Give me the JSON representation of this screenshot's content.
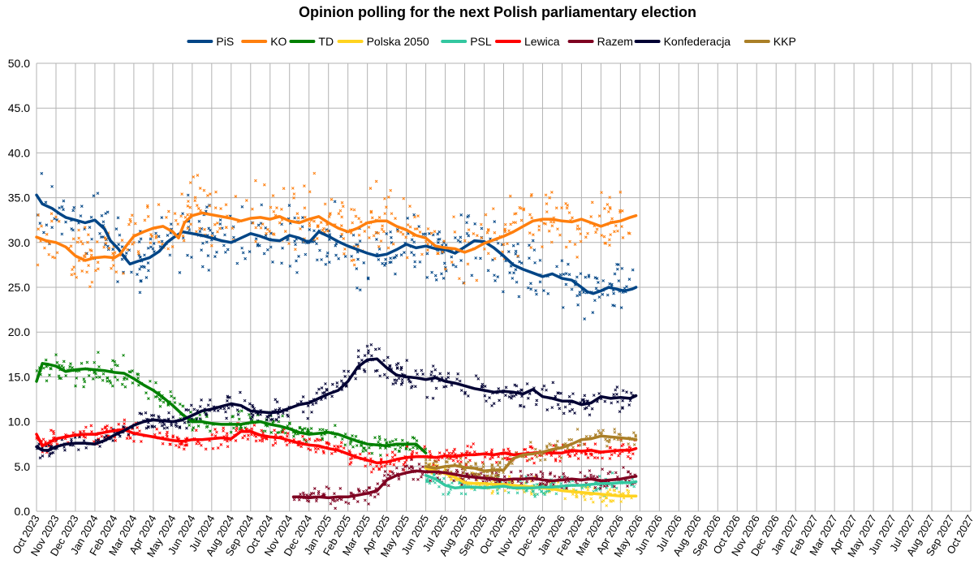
{
  "chart_data": {
    "type": "line",
    "title": "Opinion polling for the next Polish parliamentary election",
    "xlabel": "",
    "ylabel": "",
    "ylim": [
      0,
      50
    ],
    "y_ticks": [
      "0.0",
      "5.0",
      "10.0",
      "15.0",
      "20.0",
      "25.0",
      "30.0",
      "35.0",
      "40.0",
      "45.0",
      "50.0"
    ],
    "x_ticks": [
      "Oct 2023",
      "Nov 2023",
      "Dec 2023",
      "Jan 2024",
      "Feb 2024",
      "Mar 2024",
      "Apr 2024",
      "May 2024",
      "Jun 2024",
      "Jul 2024",
      "Aug 2024",
      "Sep 2024",
      "Oct 2024",
      "Nov 2024",
      "Dec 2024",
      "Jan 2025",
      "Feb 2025",
      "Mar 2025",
      "Apr 2025",
      "May 2025",
      "Jun 2025",
      "Jul 2025",
      "Aug 2025",
      "Sep 2025",
      "Oct 2025",
      "Nov 2025",
      "Dec 2025",
      "Jan 2026",
      "Feb 2026",
      "Mar 2026",
      "Apr 2026",
      "May 2026",
      "Jun 2026",
      "Jul 2026",
      "Aug 2026",
      "Sep 2026",
      "Oct 2026",
      "Nov 2026",
      "Dec 2026",
      "Jan 2027",
      "Feb 2027",
      "Mar 2027",
      "Apr 2027",
      "May 2027",
      "Jun 2027",
      "Jul 2027",
      "Aug 2027",
      "Sep 2027",
      "Oct 2027"
    ],
    "grid": true,
    "legend_position": "top",
    "series": [
      {
        "name": "PiS",
        "color": "#004586",
        "x": [
          0,
          0.3,
          0.8,
          1.2,
          1.5,
          2,
          2.5,
          3,
          3.5,
          3.8,
          4.2,
          4.5,
          4.8,
          5.2,
          5.8,
          6.3,
          6.7,
          7,
          7.5,
          8,
          8.5,
          9,
          9.5,
          10,
          10.5,
          11,
          11.5,
          12,
          12.5,
          13,
          13.5,
          14,
          14.5,
          15,
          15.5,
          16,
          16.5,
          17,
          17.5,
          18,
          18.5,
          19,
          19.5,
          20,
          20.5,
          21,
          21.5,
          22,
          22.5,
          23,
          23.5,
          24,
          24.5,
          25,
          25.5,
          26,
          26.5,
          27,
          27.5,
          28,
          28.3,
          28.6,
          29,
          29.4,
          29.8,
          30.2,
          30.6,
          30.8
        ],
        "y": [
          35.3,
          34.3,
          33.8,
          33.2,
          32.8,
          32.5,
          32.2,
          32.5,
          31.5,
          30.2,
          29.3,
          28.4,
          27.6,
          27.9,
          28.3,
          29,
          30,
          30.5,
          31.2,
          31,
          30.8,
          30.5,
          30.2,
          30,
          30.5,
          31,
          30.7,
          30.3,
          30.2,
          30.8,
          30.5,
          30,
          31.2,
          30.7,
          30.1,
          29.6,
          29.2,
          28.8,
          28.5,
          28.7,
          29.2,
          29.8,
          29.4,
          29.6,
          29.3,
          29.2,
          28.8,
          29.5,
          30.2,
          30.1,
          29.4,
          28.5,
          27.5,
          27,
          26.6,
          26.2,
          26.5,
          26,
          25.8,
          25,
          24.5,
          24.3,
          24.6,
          25,
          24.8,
          24.6,
          24.8,
          25
        ]
      },
      {
        "name": "KO",
        "color": "#ff7f0e",
        "x": [
          0,
          0.5,
          1,
          1.5,
          2,
          2.5,
          3,
          3.5,
          4,
          4.3,
          4.6,
          5,
          5.5,
          6,
          6.5,
          7,
          7.3,
          7.6,
          8,
          8.5,
          9,
          9.5,
          10,
          10.5,
          11,
          11.5,
          12,
          12.5,
          13,
          13.5,
          14,
          14.5,
          15,
          15.5,
          16,
          16.5,
          17,
          17.5,
          18,
          18.5,
          19,
          19.5,
          20,
          20.5,
          21,
          21.5,
          22,
          22.5,
          23,
          23.5,
          24,
          24.5,
          25,
          25.5,
          26,
          26.5,
          27,
          27.5,
          28,
          28.5,
          29,
          29.5,
          30,
          30.5,
          30.8
        ],
        "y": [
          30.6,
          30.2,
          30,
          29.5,
          28.5,
          28,
          28.3,
          28.4,
          28.3,
          28.7,
          29.6,
          30.7,
          31.2,
          31.6,
          31.8,
          31.2,
          30.5,
          32.2,
          33,
          33.3,
          33.1,
          32.9,
          32.7,
          32.4,
          32.7,
          32.8,
          32.6,
          32.9,
          32.4,
          32.2,
          32.6,
          32.9,
          32.2,
          31.6,
          31.2,
          31.6,
          32.2,
          32.4,
          32.4,
          31.8,
          31.4,
          30.8,
          30.5,
          29.6,
          29.4,
          29.3,
          28.9,
          29.3,
          29.9,
          30.3,
          30.7,
          31.2,
          31.8,
          32.4,
          32.6,
          32.6,
          32.4,
          32.3,
          32.6,
          32.2,
          31.8,
          32.2,
          32.4,
          32.8,
          33
        ]
      },
      {
        "name": "TD",
        "color": "#008000",
        "x": [
          0,
          0.3,
          0.6,
          1,
          1.5,
          2,
          2.5,
          3,
          3.5,
          4,
          4.5,
          5,
          5.5,
          6,
          6.5,
          7,
          7.5,
          8,
          8.5,
          9,
          9.5,
          10,
          10.5,
          11,
          11.5,
          12,
          12.5,
          13,
          13.5,
          14,
          14.5,
          15,
          15.5,
          16,
          16.5,
          17,
          17.5,
          18,
          18.5,
          19,
          19.5,
          20
        ],
        "y": [
          14.5,
          16.5,
          16.4,
          16.2,
          15.6,
          15.8,
          15.9,
          15.8,
          15.7,
          15.5,
          15.4,
          14.8,
          14.1,
          13.5,
          12.7,
          11.8,
          10.8,
          10,
          10,
          9.8,
          9.7,
          9.7,
          9.7,
          9.9,
          10,
          9.7,
          9.5,
          9.2,
          8.8,
          8.6,
          8.7,
          8.8,
          8.6,
          8.2,
          7.8,
          7.5,
          7.4,
          7.3,
          7.5,
          7.5,
          7.5,
          6.5
        ]
      },
      {
        "name": "Polska 2050",
        "color": "#ffd320",
        "x": [
          20,
          20.5,
          21,
          21.5,
          22,
          22.5,
          23,
          23.5,
          24,
          24.5,
          25,
          25.5,
          26,
          26.5,
          27,
          27.5,
          28,
          28.5,
          29,
          29.5,
          30,
          30.5,
          30.8
        ],
        "y": [
          4.8,
          4.5,
          4.2,
          3.8,
          3.2,
          3.1,
          3.1,
          3,
          3,
          2.9,
          2.8,
          2.7,
          2.6,
          2.5,
          2.3,
          2.2,
          2.1,
          2,
          1.9,
          1.8,
          1.7,
          1.7,
          1.7
        ]
      },
      {
        "name": "PSL",
        "color": "#33c7a0",
        "x": [
          20,
          20.5,
          21,
          21.5,
          22,
          22.5,
          23,
          23.5,
          24,
          24.5,
          25,
          25.5,
          26,
          26.5,
          27,
          27.5,
          28,
          28.5,
          29,
          29.5,
          30,
          30.5,
          30.8
        ],
        "y": [
          4,
          3.6,
          2.9,
          2.6,
          2.7,
          2.7,
          2.6,
          2.7,
          2.8,
          2.6,
          2.6,
          2.6,
          2.7,
          2.7,
          2.8,
          2.9,
          2.9,
          3,
          3.1,
          3.1,
          3.2,
          3.2,
          3.3
        ]
      },
      {
        "name": "Lewica",
        "color": "#ff0000",
        "x": [
          0,
          0.3,
          0.6,
          1,
          1.5,
          2,
          2.5,
          3,
          3.5,
          4,
          4.5,
          5,
          5.5,
          6,
          6.5,
          7,
          7.5,
          8,
          8.5,
          9,
          9.5,
          10,
          10.5,
          11,
          11.5,
          12,
          12.5,
          13,
          13.5,
          14,
          14.5,
          15,
          15.5,
          16,
          16.5,
          17,
          17.5,
          18,
          18.5,
          19,
          19.5,
          20,
          20.5,
          21,
          21.5,
          22,
          22.5,
          23,
          23.5,
          24,
          24.5,
          25,
          25.5,
          26,
          26.5,
          27,
          27.5,
          28,
          28.5,
          29,
          29.5,
          30,
          30.5,
          30.8
        ],
        "y": [
          8.6,
          7.3,
          7.6,
          8.1,
          8.3,
          8.5,
          8.6,
          8.6,
          8.8,
          9,
          9.1,
          8.7,
          8.5,
          8.3,
          8.1,
          7.9,
          7.8,
          8,
          8,
          8.1,
          8.2,
          8.1,
          8.9,
          8.9,
          8.5,
          8.3,
          8.2,
          7.9,
          7.6,
          7.4,
          7.3,
          7,
          6.8,
          6.4,
          6,
          5.7,
          5.4,
          5.5,
          5.8,
          6,
          6.1,
          6.1,
          6,
          6.2,
          6.1,
          6.3,
          6.3,
          6.4,
          6.3,
          6.5,
          6.3,
          6.4,
          6.5,
          6.6,
          6.5,
          6.5,
          6.8,
          6.7,
          6.8,
          6.6,
          6.7,
          6.8,
          6.8,
          7
        ]
      },
      {
        "name": "Razem",
        "color": "#7e0021",
        "x": [
          13.2,
          13.5,
          14,
          14.5,
          15,
          15.5,
          16,
          16.5,
          17,
          17.5,
          18,
          18.5,
          19,
          19.5,
          20,
          20.5,
          21,
          21.5,
          22,
          22.5,
          23,
          23.5,
          24,
          24.5,
          25,
          25.5,
          26,
          26.5,
          27,
          27.5,
          28,
          28.5,
          29,
          29.5,
          30,
          30.5,
          30.8
        ],
        "y": [
          1.6,
          1.6,
          1.5,
          1.6,
          1.5,
          1.6,
          1.6,
          1.8,
          2,
          2.3,
          3.5,
          4,
          4.3,
          4.5,
          4.4,
          4.4,
          4.3,
          4.1,
          3.9,
          3.8,
          3.7,
          3.6,
          3.5,
          3.6,
          3.6,
          3.7,
          3.5,
          3.4,
          3.5,
          3.6,
          3.5,
          3.6,
          3.4,
          3.5,
          3.6,
          3.8,
          3.9
        ]
      },
      {
        "name": "Konfederacja",
        "color": "#000033",
        "x": [
          0,
          0.3,
          0.6,
          1,
          1.5,
          2,
          2.5,
          3,
          3.5,
          4,
          4.5,
          5,
          5.5,
          6,
          6.5,
          7,
          7.5,
          8,
          8.5,
          9,
          9.5,
          10,
          10.5,
          11,
          11.5,
          12,
          12.5,
          13,
          13.5,
          14,
          14.5,
          15,
          15.5,
          16,
          16.5,
          17,
          17.5,
          18,
          18.5,
          19,
          19.5,
          20,
          20.5,
          21,
          21.5,
          22,
          22.5,
          23,
          23.5,
          24,
          24.5,
          25,
          25.5,
          26,
          26.5,
          27,
          27.5,
          28,
          28.5,
          29,
          29.5,
          30,
          30.5,
          30.8
        ],
        "y": [
          7.2,
          6.8,
          6.8,
          7.2,
          7.5,
          7.6,
          7.6,
          7.5,
          7.9,
          8.5,
          9,
          9.6,
          10,
          10.2,
          10.1,
          10,
          10.2,
          10.7,
          11.2,
          11.4,
          11.7,
          12,
          11.8,
          11.2,
          11.1,
          11,
          11.1,
          11.5,
          11.9,
          12.1,
          12.6,
          13.1,
          13.5,
          14.5,
          16.1,
          16.9,
          17,
          16,
          15.2,
          15,
          14.9,
          14.7,
          14.9,
          14.5,
          14.3,
          14,
          13.7,
          13.5,
          13.3,
          13.4,
          13.3,
          13.1,
          13.6,
          12.8,
          12.6,
          12.3,
          12.3,
          11.9,
          12.1,
          12.8,
          12.6,
          12.7,
          12.6,
          12.9
        ]
      },
      {
        "name": "KKP",
        "color": "#aa7f27",
        "x": [
          20,
          20.5,
          21,
          21.5,
          22,
          22.5,
          23,
          23.5,
          24,
          24.5,
          25,
          25.5,
          26,
          26.5,
          27,
          27.5,
          28,
          28.5,
          29,
          29.5,
          30,
          30.5,
          30.8
        ],
        "y": [
          5,
          4.8,
          5,
          5.1,
          4.9,
          4.8,
          4.5,
          4.6,
          4.6,
          5.9,
          6.3,
          6.4,
          6.6,
          6.9,
          7.1,
          7.5,
          8,
          8.1,
          8.4,
          8.3,
          8.2,
          8.1,
          8
        ]
      }
    ]
  }
}
